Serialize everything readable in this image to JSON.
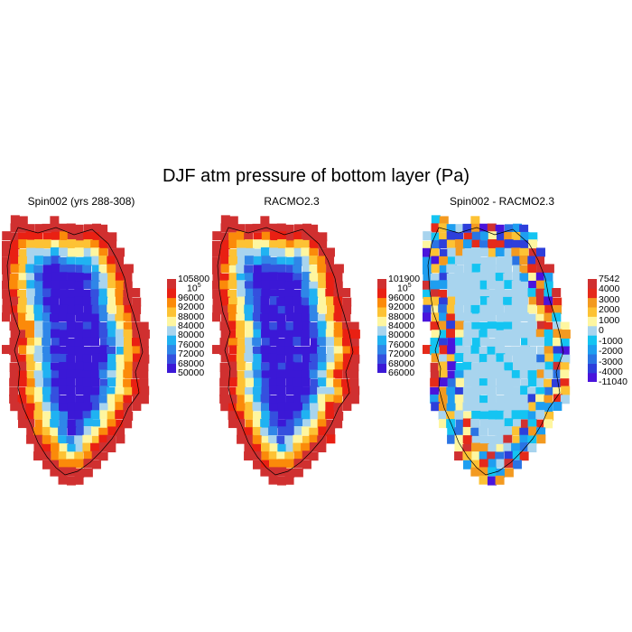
{
  "title": "DJF atm pressure of bottom layer (Pa)",
  "panels": [
    {
      "title": "Spin002 (yrs 288-308)",
      "field": "absolute",
      "colorbar": {
        "colors": [
          "#3b18d6",
          "#3550de",
          "#2f86e8",
          "#20b2f2",
          "#a8d4ee",
          "#fef6a0",
          "#fdc234",
          "#fb8a0a",
          "#e92013",
          "#d03030"
        ],
        "labels": [
          "105800",
          "10⁵",
          "96000",
          "92000",
          "88000",
          "84000",
          "80000",
          "76000",
          "72000",
          "68000",
          "50000"
        ]
      }
    },
    {
      "title": "RACMO2.3",
      "field": "absolute",
      "colorbar": {
        "colors": [
          "#3b18d6",
          "#3550de",
          "#2f86e8",
          "#20b2f2",
          "#a8d4ee",
          "#fef6a0",
          "#fdc234",
          "#fb8a0a",
          "#e92013",
          "#d03030"
        ],
        "labels": [
          "101900",
          "10⁵",
          "96000",
          "92000",
          "88000",
          "84000",
          "80000",
          "76000",
          "72000",
          "68000",
          "66000"
        ]
      }
    },
    {
      "title": "Spin002 - RACMO2.3",
      "field": "difference",
      "colorbar": {
        "colors": [
          "#4a14dc",
          "#2d3fdb",
          "#2a74e4",
          "#1e9ef0",
          "#14c4f2",
          "#a8d4ee",
          "#fef6a0",
          "#fdc234",
          "#f39a20",
          "#e52a1a",
          "#d03030"
        ],
        "labels": [
          "7542",
          "4000",
          "3000",
          "2000",
          "1000",
          "0",
          "-1000",
          "-2000",
          "-3000",
          "-4000",
          "-11040"
        ]
      }
    }
  ]
}
